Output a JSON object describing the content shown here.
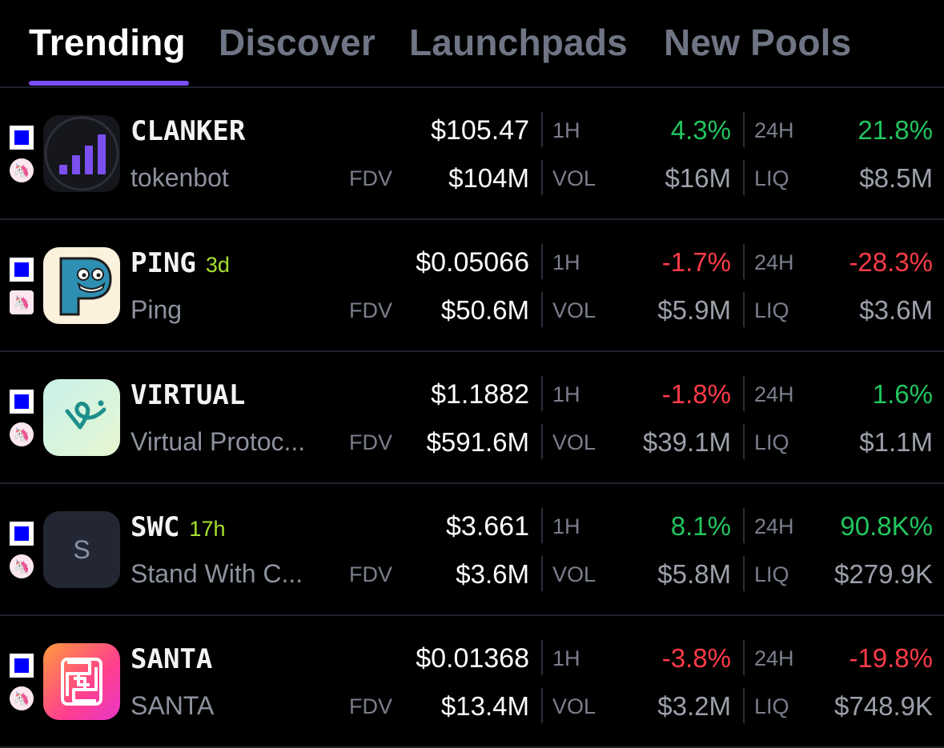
{
  "tabs": [
    {
      "label": "Trending",
      "active": true
    },
    {
      "label": "Discover",
      "active": false
    },
    {
      "label": "Launchpads",
      "active": false
    },
    {
      "label": "New Pools",
      "active": false
    }
  ],
  "labels": {
    "fdv": "FDV",
    "h1": "1H",
    "h24": "24H",
    "vol": "VOL",
    "liq": "LIQ"
  },
  "dex_icon": "uniswap-unicorn-icon",
  "chain_icon": "base-chain-square-icon",
  "tokens": [
    {
      "symbol": "CLANKER",
      "age": "",
      "name": "tokenbot",
      "price": "$105.47",
      "fdv": "$104M",
      "change_1h": "4.3%",
      "change_24h": "21.8%",
      "vol": "$16M",
      "liq": "$8.5M",
      "change_1h_dir": "up",
      "change_24h_dir": "up",
      "logo": "bar-chart-icon"
    },
    {
      "symbol": "PING",
      "age": "3d",
      "name": "Ping",
      "price": "$0.05066",
      "fdv": "$50.6M",
      "change_1h": "-1.7%",
      "change_24h": "-28.3%",
      "vol": "$5.9M",
      "liq": "$3.6M",
      "change_1h_dir": "down",
      "change_24h_dir": "down",
      "logo": "ping-p-face-icon"
    },
    {
      "symbol": "VIRTUAL",
      "age": "",
      "name": "Virtual Protoc...",
      "price": "$1.1882",
      "fdv": "$591.6M",
      "change_1h": "-1.8%",
      "change_24h": "1.6%",
      "vol": "$39.1M",
      "liq": "$1.1M",
      "change_1h_dir": "down",
      "change_24h_dir": "up",
      "logo": "virtual-swirl-icon"
    },
    {
      "symbol": "SWC",
      "age": "17h",
      "name": "Stand With C...",
      "price": "$3.661",
      "fdv": "$3.6M",
      "change_1h": "8.1%",
      "change_24h": "90.8K%",
      "vol": "$5.8M",
      "liq": "$279.9K",
      "change_1h_dir": "up",
      "change_24h_dir": "up",
      "logo": "letter-placeholder-icon",
      "logo_letter": "S"
    },
    {
      "symbol": "SANTA",
      "age": "",
      "name": "SANTA",
      "price": "$0.01368",
      "fdv": "$13.4M",
      "change_1h": "-3.8%",
      "change_24h": "-19.8%",
      "vol": "$3.2M",
      "liq": "$748.9K",
      "change_1h_dir": "down",
      "change_24h_dir": "down",
      "logo": "knot-pattern-icon"
    }
  ],
  "colors": {
    "accent": "#7b4dff",
    "positive": "#22c55e",
    "negative": "#ff3b47",
    "age": "#a6e22e"
  }
}
